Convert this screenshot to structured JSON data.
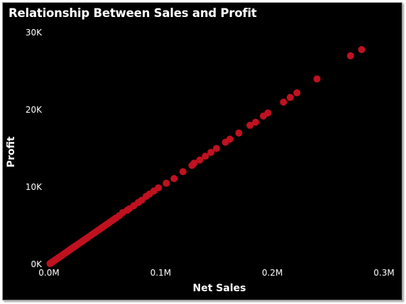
{
  "chart_data": {
    "type": "scatter",
    "title": "Relationship Between Sales and Profit",
    "xlabel": "Net Sales",
    "ylabel": "Profit",
    "xlim": [
      0,
      300000
    ],
    "ylim": [
      0,
      30000
    ],
    "x_ticks": [
      {
        "value": 0,
        "label": "0.0M"
      },
      {
        "value": 100000,
        "label": "0.1M"
      },
      {
        "value": 200000,
        "label": "0.2M"
      },
      {
        "value": 300000,
        "label": "0.3M"
      }
    ],
    "y_ticks": [
      {
        "value": 0,
        "label": "0K"
      },
      {
        "value": 10000,
        "label": "10K"
      },
      {
        "value": 20000,
        "label": "20K"
      },
      {
        "value": 30000,
        "label": "30K"
      }
    ],
    "grid": false,
    "marker_color": "#C0111F",
    "background": "#000000",
    "points": [
      {
        "x": 1000,
        "y": 100
      },
      {
        "x": 2000,
        "y": 200
      },
      {
        "x": 3000,
        "y": 300
      },
      {
        "x": 4000,
        "y": 400
      },
      {
        "x": 5000,
        "y": 500
      },
      {
        "x": 6000,
        "y": 600
      },
      {
        "x": 7000,
        "y": 700
      },
      {
        "x": 8000,
        "y": 800
      },
      {
        "x": 9000,
        "y": 900
      },
      {
        "x": 10000,
        "y": 1000
      },
      {
        "x": 11000,
        "y": 1100
      },
      {
        "x": 12000,
        "y": 1200
      },
      {
        "x": 13000,
        "y": 1300
      },
      {
        "x": 14000,
        "y": 1400
      },
      {
        "x": 15000,
        "y": 1500
      },
      {
        "x": 16000,
        "y": 1600
      },
      {
        "x": 17000,
        "y": 1700
      },
      {
        "x": 18000,
        "y": 1800
      },
      {
        "x": 19000,
        "y": 1900
      },
      {
        "x": 20000,
        "y": 2000
      },
      {
        "x": 21000,
        "y": 2100
      },
      {
        "x": 22000,
        "y": 2200
      },
      {
        "x": 23000,
        "y": 2300
      },
      {
        "x": 24000,
        "y": 2400
      },
      {
        "x": 26000,
        "y": 2600
      },
      {
        "x": 28000,
        "y": 2800
      },
      {
        "x": 30000,
        "y": 3000
      },
      {
        "x": 32000,
        "y": 3200
      },
      {
        "x": 34000,
        "y": 3400
      },
      {
        "x": 36000,
        "y": 3600
      },
      {
        "x": 38000,
        "y": 3800
      },
      {
        "x": 40000,
        "y": 4000
      },
      {
        "x": 42000,
        "y": 4200
      },
      {
        "x": 44000,
        "y": 4400
      },
      {
        "x": 46000,
        "y": 4600
      },
      {
        "x": 48000,
        "y": 4800
      },
      {
        "x": 50000,
        "y": 5000
      },
      {
        "x": 52000,
        "y": 5200
      },
      {
        "x": 54000,
        "y": 5400
      },
      {
        "x": 56000,
        "y": 5600
      },
      {
        "x": 58000,
        "y": 5800
      },
      {
        "x": 60000,
        "y": 6000
      },
      {
        "x": 63000,
        "y": 6300
      },
      {
        "x": 66000,
        "y": 6700
      },
      {
        "x": 70000,
        "y": 7000
      },
      {
        "x": 72000,
        "y": 7200
      },
      {
        "x": 76000,
        "y": 7600
      },
      {
        "x": 80000,
        "y": 8000
      },
      {
        "x": 83000,
        "y": 8300
      },
      {
        "x": 87000,
        "y": 8800
      },
      {
        "x": 90000,
        "y": 9100
      },
      {
        "x": 94000,
        "y": 9500
      },
      {
        "x": 98000,
        "y": 9900
      },
      {
        "x": 105000,
        "y": 10500
      },
      {
        "x": 112000,
        "y": 11100
      },
      {
        "x": 120000,
        "y": 12000
      },
      {
        "x": 128000,
        "y": 12800
      },
      {
        "x": 130000,
        "y": 13100
      },
      {
        "x": 135000,
        "y": 13500
      },
      {
        "x": 140000,
        "y": 14000
      },
      {
        "x": 145000,
        "y": 14500
      },
      {
        "x": 150000,
        "y": 15000
      },
      {
        "x": 158000,
        "y": 15800
      },
      {
        "x": 162000,
        "y": 16200
      },
      {
        "x": 170000,
        "y": 17000
      },
      {
        "x": 180000,
        "y": 18000
      },
      {
        "x": 185000,
        "y": 18400
      },
      {
        "x": 192000,
        "y": 19200
      },
      {
        "x": 196000,
        "y": 19600
      },
      {
        "x": 210000,
        "y": 21000
      },
      {
        "x": 216000,
        "y": 21600
      },
      {
        "x": 222000,
        "y": 22200
      },
      {
        "x": 240000,
        "y": 24000
      },
      {
        "x": 270000,
        "y": 27000
      },
      {
        "x": 280000,
        "y": 27800
      }
    ]
  }
}
